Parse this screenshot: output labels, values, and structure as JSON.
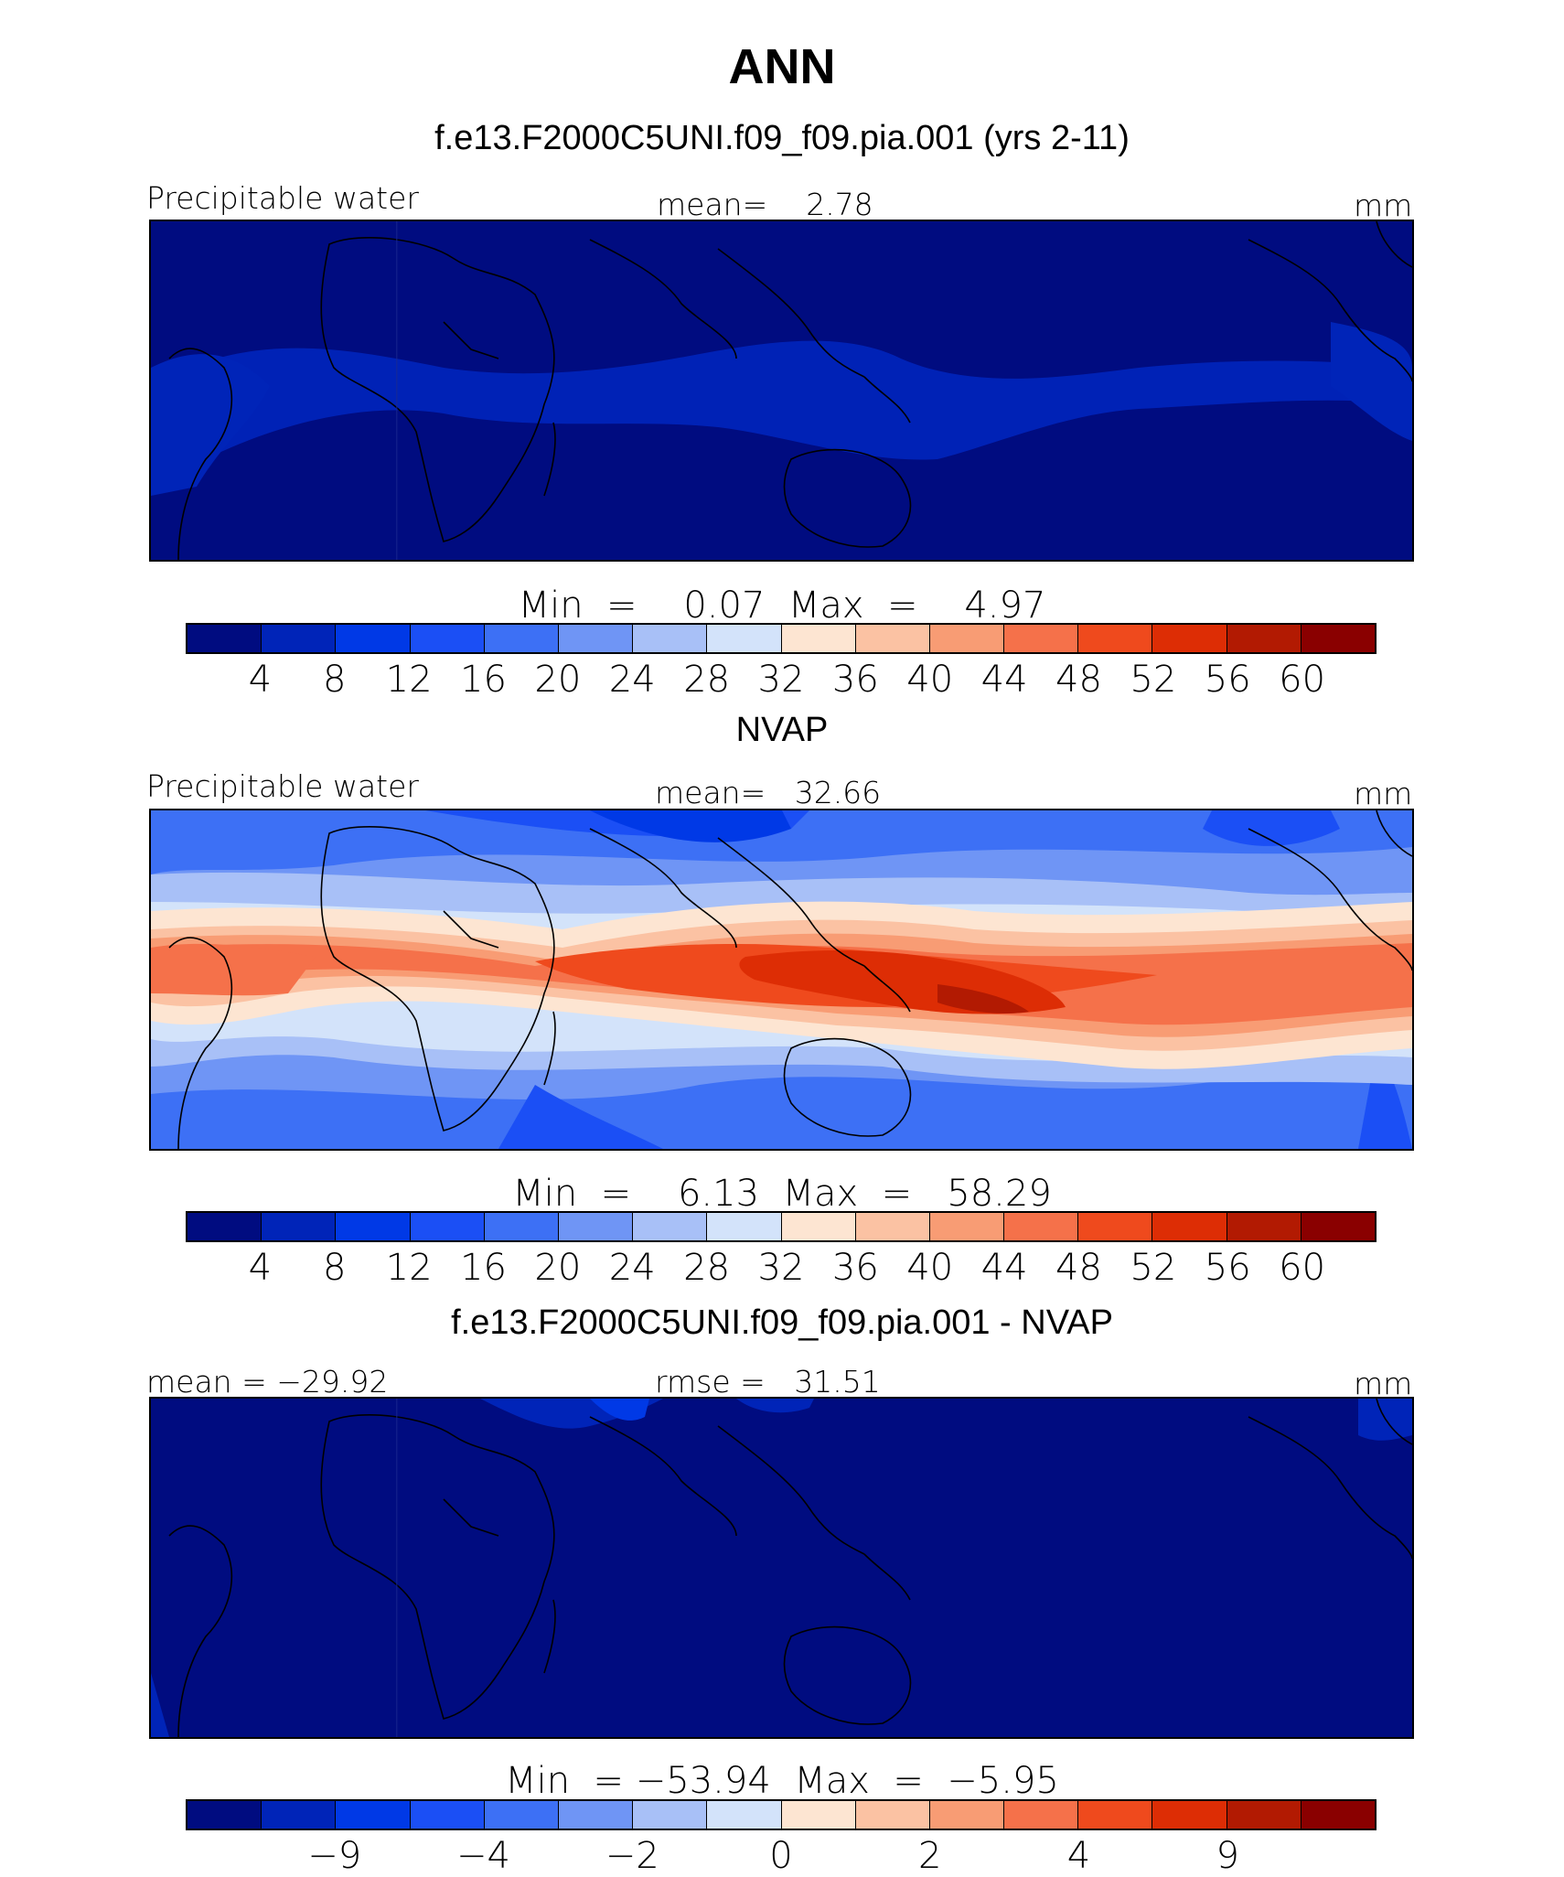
{
  "title": "ANN",
  "panels": [
    {
      "heading": "f.e13.F2000C5UNI.f09_f09.pia.001 (yrs 2-11)",
      "left_label": "Precipitable water",
      "center_label": "mean=    2.78",
      "units": "mm",
      "minmax_label": "Min  =    0.07  Max  =    4.97",
      "colorbar_ticks": [
        "4",
        "8",
        "12",
        "16",
        "20",
        "24",
        "28",
        "32",
        "36",
        "40",
        "44",
        "48",
        "52",
        "56",
        "60"
      ]
    },
    {
      "heading": "NVAP",
      "left_label": "Precipitable water",
      "center_label": "mean=   32.66",
      "units": "mm",
      "minmax_label": "Min  =    6.13  Max  =   58.29",
      "colorbar_ticks": [
        "4",
        "8",
        "12",
        "16",
        "20",
        "24",
        "28",
        "32",
        "36",
        "40",
        "44",
        "48",
        "52",
        "56",
        "60"
      ]
    },
    {
      "heading": "f.e13.F2000C5UNI.f09_f09.pia.001 - NVAP",
      "left_label": "mean = −29.92",
      "center_label": "rmse =   31.51",
      "units": "mm",
      "minmax_label": "Min  = −53.94  Max  =  −5.95",
      "colorbar_ticks": [
        "−9",
        "−4",
        "−2",
        "0",
        "2",
        "4",
        "9"
      ]
    }
  ],
  "colors": {
    "palette": [
      "#000c80",
      "#0024b8",
      "#0039e6",
      "#1b4ff5",
      "#3d70f5",
      "#6f95f5",
      "#a8c0f7",
      "#d3e3fa",
      "#fde5d2",
      "#fbc2a3",
      "#f89c74",
      "#f5714a",
      "#ef4a1d",
      "#dd2d05",
      "#b21a02",
      "#8a0000"
    ],
    "land_outline": "#000000"
  },
  "chart_data": [
    {
      "type": "heatmap",
      "title": "f.e13.F2000C5UNI.f09_f09.pia.001 (yrs 2-11)",
      "field": "Precipitable water",
      "units": "mm",
      "mean": 2.78,
      "min": 0.07,
      "max": 4.97,
      "contour_levels": [
        4,
        8,
        12,
        16,
        20,
        24,
        28,
        32,
        36,
        40,
        44,
        48,
        52,
        56,
        60
      ]
    },
    {
      "type": "heatmap",
      "title": "NVAP",
      "field": "Precipitable water",
      "units": "mm",
      "mean": 32.66,
      "min": 6.13,
      "max": 58.29,
      "contour_levels": [
        4,
        8,
        12,
        16,
        20,
        24,
        28,
        32,
        36,
        40,
        44,
        48,
        52,
        56,
        60
      ]
    },
    {
      "type": "heatmap",
      "title": "f.e13.F2000C5UNI.f09_f09.pia.001 - NVAP",
      "units": "mm",
      "mean": -29.92,
      "rmse": 31.51,
      "min": -53.94,
      "max": -5.95,
      "contour_levels": [
        -9,
        -4,
        -2,
        0,
        2,
        4,
        9
      ]
    }
  ]
}
